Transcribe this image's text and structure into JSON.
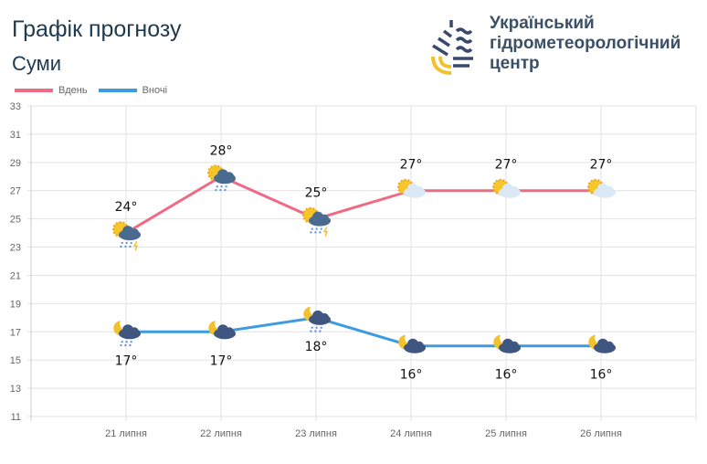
{
  "header": {
    "title": "Графік прогнозу",
    "city": "Суми"
  },
  "logo": {
    "lines": [
      "Український",
      "гідрометеорологічний",
      "центр"
    ],
    "colors": [
      "#3a4a6b",
      "#f2c12e"
    ]
  },
  "chart_data": {
    "type": "line",
    "categories": [
      "21 липня",
      "22 липня",
      "23 липня",
      "24 липня",
      "25 липня",
      "26 липня"
    ],
    "ylim": [
      11,
      33
    ],
    "yticks": [
      11,
      13,
      15,
      17,
      19,
      21,
      23,
      25,
      27,
      29,
      31,
      33
    ],
    "grid": true,
    "legend": "top-left",
    "series": [
      {
        "name": "Вдень",
        "color": "#f06a85",
        "values": [
          24,
          28,
          25,
          27,
          27,
          27
        ],
        "labels": [
          "24°",
          "28°",
          "25°",
          "27°",
          "27°",
          "27°"
        ],
        "icons": [
          "partly-cloudy-rain-thunder-icon",
          "partly-cloudy-rain-icon",
          "partly-cloudy-rain-thunder-icon",
          "sun-cloud-icon",
          "sun-cloud-icon",
          "sun-cloud-icon"
        ]
      },
      {
        "name": "Вночі",
        "color": "#3d9be0",
        "values": [
          17,
          17,
          18,
          16,
          16,
          16
        ],
        "labels": [
          "17°",
          "17°",
          "18°",
          "16°",
          "16°",
          "16°"
        ],
        "icons": [
          "moon-cloud-rain-icon",
          "moon-cloud-icon",
          "moon-cloud-rain-icon",
          "moon-cloud-icon",
          "moon-cloud-icon",
          "moon-cloud-icon"
        ]
      }
    ]
  }
}
